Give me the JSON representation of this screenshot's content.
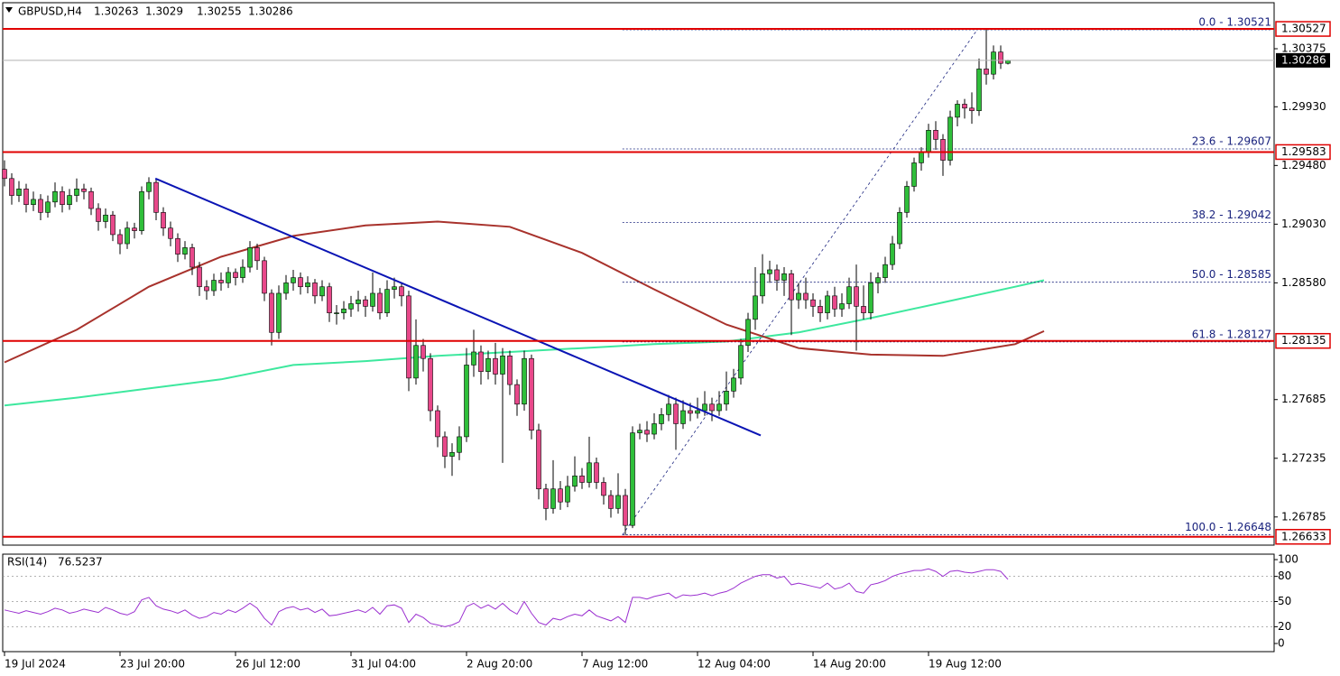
{
  "chart_data": [
    {
      "type": "candlestick",
      "symbol": "GBPUSD,H4",
      "up_color": "#2fbf3a",
      "down_color": "#e8488a",
      "candles": [
        [
          1.2945,
          1.2952,
          1.2932,
          1.2938
        ],
        [
          1.2938,
          1.2942,
          1.2918,
          1.2925
        ],
        [
          1.2925,
          1.2936,
          1.292,
          1.293
        ],
        [
          1.293,
          1.2934,
          1.2912,
          1.2918
        ],
        [
          1.2918,
          1.2928,
          1.2913,
          1.2922
        ],
        [
          1.2922,
          1.2926,
          1.2906,
          1.2912
        ],
        [
          1.2912,
          1.2925,
          1.2908,
          1.292
        ],
        [
          1.292,
          1.2935,
          1.2916,
          1.2928
        ],
        [
          1.2928,
          1.2932,
          1.2912,
          1.2918
        ],
        [
          1.2918,
          1.293,
          1.2914,
          1.2925
        ],
        [
          1.2925,
          1.2938,
          1.292,
          1.293
        ],
        [
          1.293,
          1.2934,
          1.2922,
          1.2928
        ],
        [
          1.2928,
          1.2931,
          1.291,
          1.2915
        ],
        [
          1.2915,
          1.2919,
          1.2898,
          1.2905
        ],
        [
          1.2905,
          1.2915,
          1.29,
          1.291
        ],
        [
          1.291,
          1.2913,
          1.289,
          1.2895
        ],
        [
          1.2895,
          1.2899,
          1.288,
          1.2888
        ],
        [
          1.2888,
          1.2905,
          1.2884,
          1.29
        ],
        [
          1.29,
          1.2904,
          1.2892,
          1.2898
        ],
        [
          1.2898,
          1.2932,
          1.2895,
          1.2928
        ],
        [
          1.2928,
          1.2939,
          1.2922,
          1.2935
        ],
        [
          1.2935,
          1.2938,
          1.2906,
          1.2912
        ],
        [
          1.2912,
          1.2916,
          1.2894,
          1.29
        ],
        [
          1.29,
          1.2905,
          1.2886,
          1.2892
        ],
        [
          1.2892,
          1.2896,
          1.2874,
          1.288
        ],
        [
          1.288,
          1.289,
          1.2876,
          1.2885
        ],
        [
          1.2885,
          1.2888,
          1.2864,
          1.287
        ],
        [
          1.287,
          1.2874,
          1.2848,
          1.2855
        ],
        [
          1.2855,
          1.286,
          1.2845,
          1.2852
        ],
        [
          1.2852,
          1.2865,
          1.2848,
          1.286
        ],
        [
          1.286,
          1.2866,
          1.2852,
          1.2858
        ],
        [
          1.2858,
          1.287,
          1.2854,
          1.2866
        ],
        [
          1.2866,
          1.2869,
          1.2856,
          1.2862
        ],
        [
          1.2862,
          1.2876,
          1.2858,
          1.287
        ],
        [
          1.287,
          1.289,
          1.2866,
          1.2885
        ],
        [
          1.2885,
          1.2888,
          1.2868,
          1.2875
        ],
        [
          1.2875,
          1.2878,
          1.2844,
          1.285
        ],
        [
          1.285,
          1.2853,
          1.281,
          1.282
        ],
        [
          1.282,
          1.2856,
          1.2815,
          1.285
        ],
        [
          1.285,
          1.2864,
          1.2845,
          1.2858
        ],
        [
          1.2858,
          1.2868,
          1.2852,
          1.2862
        ],
        [
          1.2862,
          1.2866,
          1.2849,
          1.2855
        ],
        [
          1.2855,
          1.2863,
          1.285,
          1.2858
        ],
        [
          1.2858,
          1.2861,
          1.2842,
          1.2848
        ],
        [
          1.2848,
          1.286,
          1.2844,
          1.2855
        ],
        [
          1.2855,
          1.2858,
          1.2828,
          1.2835
        ],
        [
          1.2835,
          1.2841,
          1.2826,
          1.2835
        ],
        [
          1.2835,
          1.2844,
          1.283,
          1.2838
        ],
        [
          1.2838,
          1.2848,
          1.2832,
          1.2842
        ],
        [
          1.2842,
          1.2852,
          1.2836,
          1.2845
        ],
        [
          1.2845,
          1.2848,
          1.2832,
          1.284
        ],
        [
          1.284,
          1.2866,
          1.2836,
          1.285
        ],
        [
          1.285,
          1.2854,
          1.283,
          1.2835
        ],
        [
          1.2835,
          1.286,
          1.2832,
          1.2853
        ],
        [
          1.2853,
          1.2862,
          1.2846,
          1.2855
        ],
        [
          1.2855,
          1.2858,
          1.284,
          1.2848
        ],
        [
          1.2848,
          1.2852,
          1.2775,
          1.2785
        ],
        [
          1.2785,
          1.283,
          1.278,
          1.281
        ],
        [
          1.281,
          1.2815,
          1.279,
          1.28
        ],
        [
          1.28,
          1.2804,
          1.2752,
          1.276
        ],
        [
          1.276,
          1.2764,
          1.2732,
          1.274
        ],
        [
          1.274,
          1.2744,
          1.2716,
          1.2725
        ],
        [
          1.2725,
          1.2735,
          1.271,
          1.2728
        ],
        [
          1.2728,
          1.2748,
          1.2722,
          1.274
        ],
        [
          1.274,
          1.2808,
          1.2736,
          1.2795
        ],
        [
          1.2795,
          1.2822,
          1.2786,
          1.2805
        ],
        [
          1.2805,
          1.281,
          1.278,
          1.279
        ],
        [
          1.279,
          1.2806,
          1.2784,
          1.28
        ],
        [
          1.28,
          1.2812,
          1.278,
          1.2788
        ],
        [
          1.2788,
          1.2808,
          1.272,
          1.2802
        ],
        [
          1.2802,
          1.2806,
          1.2772,
          1.278
        ],
        [
          1.278,
          1.2784,
          1.2756,
          1.2765
        ],
        [
          1.2765,
          1.2806,
          1.276,
          1.28
        ],
        [
          1.28,
          1.2803,
          1.2738,
          1.2745
        ],
        [
          1.2745,
          1.275,
          1.2692,
          1.27
        ],
        [
          1.27,
          1.2704,
          1.2676,
          1.2685
        ],
        [
          1.2685,
          1.2722,
          1.2681,
          1.27
        ],
        [
          1.27,
          1.2706,
          1.2684,
          1.269
        ],
        [
          1.269,
          1.271,
          1.2686,
          1.2702
        ],
        [
          1.2702,
          1.2725,
          1.2698,
          1.271
        ],
        [
          1.271,
          1.2716,
          1.27,
          1.2705
        ],
        [
          1.2705,
          1.274,
          1.2701,
          1.272
        ],
        [
          1.272,
          1.2724,
          1.27,
          1.2705
        ],
        [
          1.2705,
          1.2709,
          1.2688,
          1.2695
        ],
        [
          1.2695,
          1.2699,
          1.2678,
          1.2685
        ],
        [
          1.2685,
          1.2712,
          1.2681,
          1.2695
        ],
        [
          1.2695,
          1.27,
          1.26648,
          1.2672
        ],
        [
          1.2672,
          1.2748,
          1.267,
          1.2743
        ],
        [
          1.2743,
          1.275,
          1.2738,
          1.2745
        ],
        [
          1.2745,
          1.2752,
          1.2736,
          1.2742
        ],
        [
          1.2742,
          1.2758,
          1.2738,
          1.275
        ],
        [
          1.275,
          1.2762,
          1.2745,
          1.2757
        ],
        [
          1.2757,
          1.2772,
          1.2752,
          1.2765
        ],
        [
          1.2765,
          1.277,
          1.273,
          1.275
        ],
        [
          1.275,
          1.2768,
          1.2746,
          1.276
        ],
        [
          1.276,
          1.2766,
          1.2752,
          1.2758
        ],
        [
          1.2758,
          1.277,
          1.2754,
          1.276
        ],
        [
          1.276,
          1.2775,
          1.2756,
          1.2765
        ],
        [
          1.2765,
          1.277,
          1.2752,
          1.276
        ],
        [
          1.276,
          1.2775,
          1.2756,
          1.2765
        ],
        [
          1.2765,
          1.279,
          1.276,
          1.2775
        ],
        [
          1.2775,
          1.2792,
          1.277,
          1.2785
        ],
        [
          1.2785,
          1.2815,
          1.278,
          1.281
        ],
        [
          1.281,
          1.2835,
          1.2805,
          1.283
        ],
        [
          1.283,
          1.287,
          1.2822,
          1.2848
        ],
        [
          1.2848,
          1.288,
          1.2842,
          1.2865
        ],
        [
          1.2865,
          1.2875,
          1.2858,
          1.2868
        ],
        [
          1.2868,
          1.2872,
          1.2852,
          1.286
        ],
        [
          1.286,
          1.287,
          1.2848,
          1.2865
        ],
        [
          1.2865,
          1.2868,
          1.2818,
          1.2845
        ],
        [
          1.2845,
          1.2858,
          1.2838,
          1.285
        ],
        [
          1.285,
          1.2862,
          1.2838,
          1.2845
        ],
        [
          1.2845,
          1.285,
          1.2832,
          1.284
        ],
        [
          1.284,
          1.2845,
          1.2828,
          1.2835
        ],
        [
          1.2835,
          1.2852,
          1.283,
          1.2848
        ],
        [
          1.2848,
          1.2855,
          1.2832,
          1.2838
        ],
        [
          1.2838,
          1.285,
          1.2832,
          1.2842
        ],
        [
          1.2842,
          1.2862,
          1.2838,
          1.2855
        ],
        [
          1.2855,
          1.2872,
          1.2806,
          1.284
        ],
        [
          1.284,
          1.2856,
          1.283,
          1.2835
        ],
        [
          1.2835,
          1.2866,
          1.283,
          1.2858
        ],
        [
          1.2858,
          1.2866,
          1.285,
          1.2862
        ],
        [
          1.2862,
          1.2878,
          1.2858,
          1.2872
        ],
        [
          1.2872,
          1.2894,
          1.2868,
          1.2888
        ],
        [
          1.2888,
          1.2916,
          1.2884,
          1.2912
        ],
        [
          1.2912,
          1.2936,
          1.2908,
          1.2932
        ],
        [
          1.2932,
          1.2954,
          1.2928,
          1.295
        ],
        [
          1.295,
          1.2962,
          1.2944,
          1.2958
        ],
        [
          1.2958,
          1.298,
          1.2954,
          1.2975
        ],
        [
          1.2975,
          1.2982,
          1.296,
          1.2968
        ],
        [
          1.2968,
          1.2972,
          1.294,
          1.2952
        ],
        [
          1.2952,
          1.299,
          1.2948,
          1.2985
        ],
        [
          1.2985,
          1.2998,
          1.2978,
          1.2995
        ],
        [
          1.2995,
          1.2999,
          1.2984,
          1.2992
        ],
        [
          1.2992,
          1.3004,
          1.298,
          1.299
        ],
        [
          1.299,
          1.303,
          1.2986,
          1.3022
        ],
        [
          1.3022,
          1.30521,
          1.301,
          1.3018
        ],
        [
          1.3018,
          1.304,
          1.3014,
          1.3035
        ],
        [
          1.3035,
          1.304,
          1.3022,
          1.30263
        ],
        [
          1.30263,
          1.3029,
          1.30255,
          1.30286
        ]
      ],
      "xlim": [
        -0.25,
        175.875
      ],
      "xticks": [
        {
          "value": 0,
          "label": "19 Jul 2024"
        },
        {
          "value": 16,
          "label": "23 Jul 20:00"
        },
        {
          "value": 32,
          "label": "26 Jul 12:00"
        },
        {
          "value": 48,
          "label": "31 Jul 04:00"
        },
        {
          "value": 64,
          "label": "2 Aug 20:00"
        },
        {
          "value": 80,
          "label": "7 Aug 12:00"
        },
        {
          "value": 96,
          "label": "12 Aug 04:00"
        },
        {
          "value": 112,
          "label": "14 Aug 20:00"
        },
        {
          "value": 128,
          "label": "19 Aug 12:00"
        }
      ],
      "ylim": [
        1.26569,
        1.30728
      ],
      "yticks": [
        1.30375,
        {
          "value": 1.2993,
          "label": "1.29930"
        },
        {
          "value": 1.2948,
          "label": "1.29480"
        },
        {
          "value": 1.2903,
          "label": "1.29030"
        },
        {
          "value": 1.2858,
          "label": "1.28580"
        },
        1.27685,
        1.27235,
        1.26785
      ],
      "levels": [
        {
          "value": 1.30527,
          "color": "#e00000"
        },
        {
          "value": 1.29583,
          "color": "#e00000"
        },
        {
          "value": 1.28135,
          "color": "#e00000"
        },
        {
          "value": 1.26633,
          "color": "#e00000"
        }
      ],
      "fibonacci": {
        "x": [
          85.6,
          134.75
        ],
        "color": "#1a237e",
        "levels": [
          {
            "label": "0.0 - 1.30521",
            "value": 1.30521
          },
          {
            "label": "23.6 - 1.29607",
            "value": 1.29607
          },
          {
            "label": "38.2 - 1.29042",
            "value": 1.29042
          },
          {
            "label": "50.0 - 1.28585",
            "value": 1.28585
          },
          {
            "label": "61.8 - 1.28127",
            "value": 1.28127
          },
          {
            "label": "100.0 - 1.26648",
            "value": 1.26648
          }
        ]
      },
      "trendline": {
        "x": [
          20.9,
          104.75
        ],
        "values": [
          1.2938,
          1.2741
        ],
        "color": "#0a14b4"
      },
      "moving_averages": [
        {
          "color": "#3de89e",
          "x": [
            0,
            10,
            20,
            30,
            40,
            50,
            60,
            70,
            80,
            90,
            100,
            110,
            120,
            130,
            140,
            144
          ],
          "values": [
            1.2764,
            1.277,
            1.2777,
            1.2784,
            1.2795,
            1.2798,
            1.2802,
            1.2805,
            1.2808,
            1.2811,
            1.2813,
            1.282,
            1.2831,
            1.2843,
            1.2855,
            1.286
          ]
        },
        {
          "color": "#a8322c",
          "x": [
            0,
            10,
            20,
            30,
            40,
            50,
            60,
            70,
            80,
            90,
            100,
            110,
            120,
            130,
            140,
            144
          ],
          "values": [
            1.2797,
            1.2822,
            1.2855,
            1.2878,
            1.2894,
            1.2902,
            1.2905,
            1.2901,
            1.2881,
            1.2853,
            1.2826,
            1.2808,
            1.2803,
            1.2802,
            1.2811,
            1.2821
          ]
        }
      ]
    },
    {
      "type": "line",
      "name": "RSI(14)",
      "color": "#9b30d0",
      "values": [
        40,
        38,
        36,
        39,
        37,
        35,
        38,
        42,
        40,
        36,
        38,
        41,
        39,
        37,
        43,
        40,
        36,
        34,
        38,
        52,
        55,
        45,
        41,
        39,
        36,
        40,
        34,
        30,
        32,
        37,
        35,
        40,
        37,
        42,
        48,
        42,
        30,
        22,
        38,
        42,
        44,
        40,
        42,
        37,
        41,
        33,
        34,
        36,
        38,
        40,
        37,
        43,
        35,
        45,
        46,
        42,
        25,
        35,
        31,
        24,
        22,
        20,
        22,
        26,
        44,
        48,
        42,
        46,
        41,
        48,
        40,
        35,
        50,
        36,
        25,
        22,
        30,
        28,
        32,
        35,
        33,
        40,
        33,
        30,
        27,
        32,
        25,
        55,
        55,
        53,
        56,
        58,
        60,
        54,
        58,
        57,
        58,
        60,
        57,
        60,
        62,
        66,
        72,
        76,
        80,
        82,
        82,
        78,
        80,
        70,
        72,
        70,
        68,
        66,
        72,
        65,
        67,
        72,
        62,
        60,
        70,
        72,
        75,
        80,
        83,
        85,
        87,
        87,
        89,
        86,
        80,
        86,
        87,
        85,
        84,
        86,
        88,
        88,
        86,
        76.5237
      ],
      "ylim": [
        -9.7,
        106.5
      ],
      "yticks": [
        100,
        80,
        50,
        20,
        0
      ],
      "levels": [
        80,
        50,
        20
      ]
    }
  ]
}
